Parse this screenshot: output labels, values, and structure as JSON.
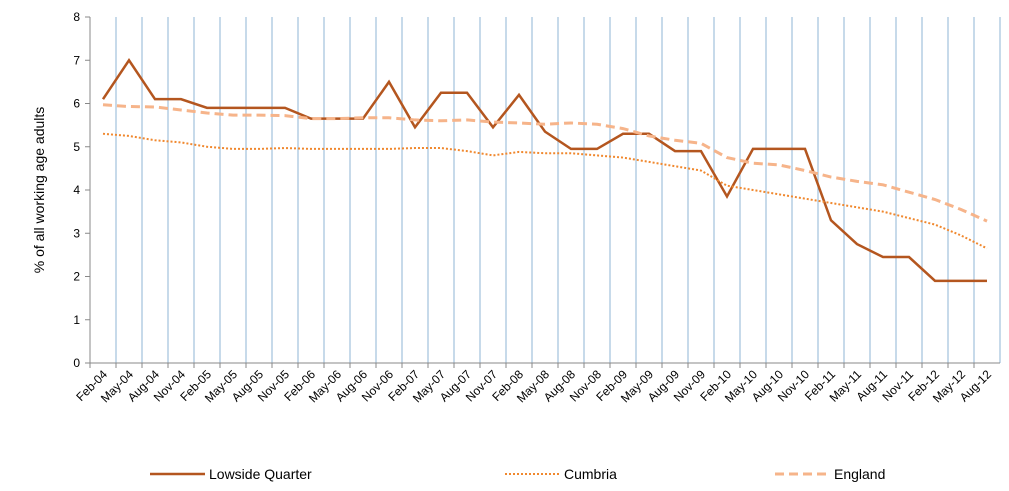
{
  "chart_data": {
    "type": "line",
    "ylabel": "% of all working age adults",
    "categories": [
      "Feb-04",
      "May-04",
      "Aug-04",
      "Nov-04",
      "Feb-05",
      "May-05",
      "Aug-05",
      "Nov-05",
      "Feb-06",
      "May-06",
      "Aug-06",
      "Nov-06",
      "Feb-07",
      "May-07",
      "Aug-07",
      "Nov-07",
      "Feb-08",
      "May-08",
      "Aug-08",
      "Nov-08",
      "Feb-09",
      "May-09",
      "Aug-09",
      "Nov-09",
      "Feb-10",
      "May-10",
      "Aug-10",
      "Nov-10",
      "Feb-11",
      "May-11",
      "Aug-11",
      "Nov-11",
      "Feb-12",
      "May-12",
      "Aug-12"
    ],
    "series": [
      {
        "name": "Lowside Quarter",
        "color": "#b4561f",
        "style": "solid",
        "values": [
          6.1,
          7.0,
          6.1,
          6.1,
          5.9,
          5.9,
          5.9,
          5.9,
          5.65,
          5.65,
          5.65,
          6.5,
          5.45,
          6.25,
          6.25,
          5.45,
          6.2,
          5.35,
          4.95,
          4.95,
          5.3,
          5.3,
          4.9,
          4.9,
          3.85,
          4.95,
          4.95,
          4.95,
          3.3,
          2.75,
          2.45,
          2.45,
          1.9,
          1.9,
          1.9
        ]
      },
      {
        "name": "Cumbria",
        "color": "#f0882e",
        "style": "dotted",
        "values": [
          5.3,
          5.25,
          5.15,
          5.1,
          5.0,
          4.95,
          4.95,
          4.97,
          4.95,
          4.95,
          4.95,
          4.95,
          4.97,
          4.97,
          4.9,
          4.8,
          4.88,
          4.85,
          4.85,
          4.8,
          4.75,
          4.65,
          4.55,
          4.45,
          4.1,
          4.0,
          3.9,
          3.8,
          3.7,
          3.6,
          3.5,
          3.35,
          3.2,
          2.95,
          2.65
        ]
      },
      {
        "name": "England",
        "color": "#f6b48a",
        "style": "dashed",
        "values": [
          5.97,
          5.93,
          5.92,
          5.85,
          5.78,
          5.73,
          5.73,
          5.72,
          5.65,
          5.65,
          5.67,
          5.67,
          5.62,
          5.6,
          5.62,
          5.57,
          5.55,
          5.52,
          5.55,
          5.52,
          5.42,
          5.25,
          5.15,
          5.08,
          4.75,
          4.62,
          4.58,
          4.45,
          4.3,
          4.2,
          4.12,
          3.95,
          3.78,
          3.55,
          3.28
        ]
      }
    ],
    "ylim": [
      0,
      8
    ],
    "yticks": [
      0,
      1,
      2,
      3,
      4,
      5,
      6,
      7,
      8
    ],
    "grid": "vertical",
    "legend": "bottom"
  }
}
